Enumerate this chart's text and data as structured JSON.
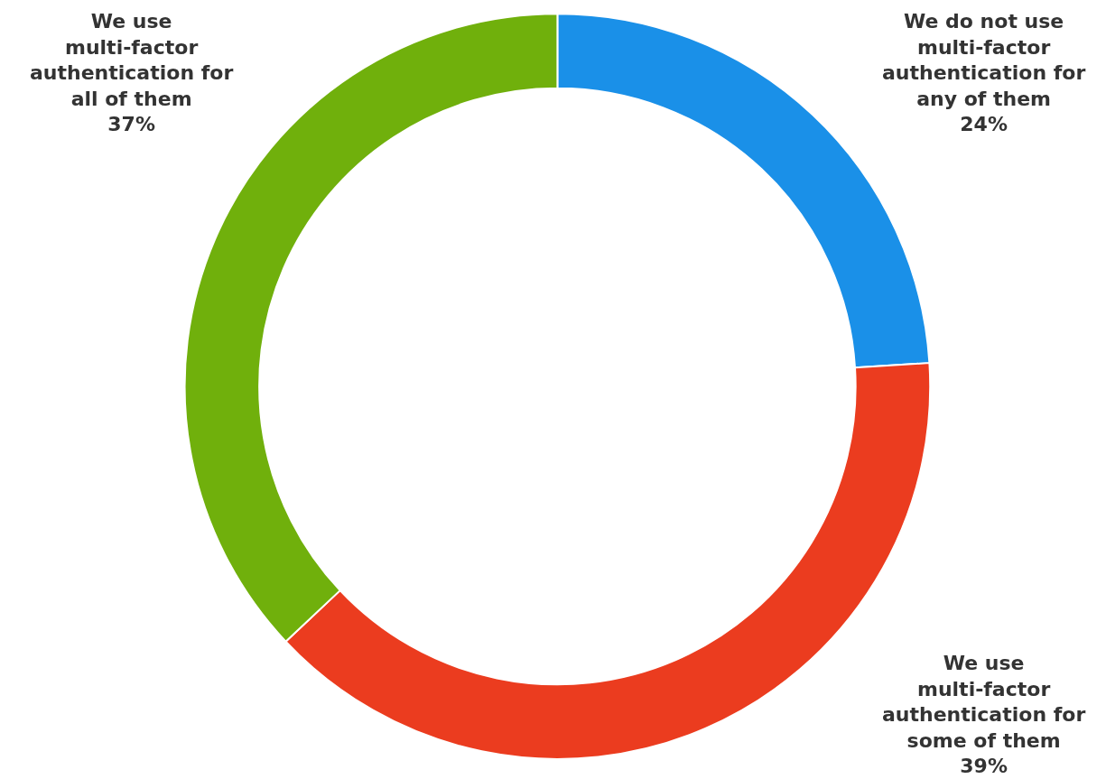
{
  "chart_data": {
    "type": "donut",
    "categories": [
      "We do not use multi-factor authentication for any of them",
      "We use multi-factor authentication for some of them",
      "We use multi-factor authentication for all of them"
    ],
    "values": [
      24,
      39,
      37
    ],
    "value_labels": [
      "24%",
      "39%",
      "37%"
    ],
    "colors": [
      "#1a90e8",
      "#eb3c1f",
      "#70b00c"
    ],
    "legend": false
  }
}
